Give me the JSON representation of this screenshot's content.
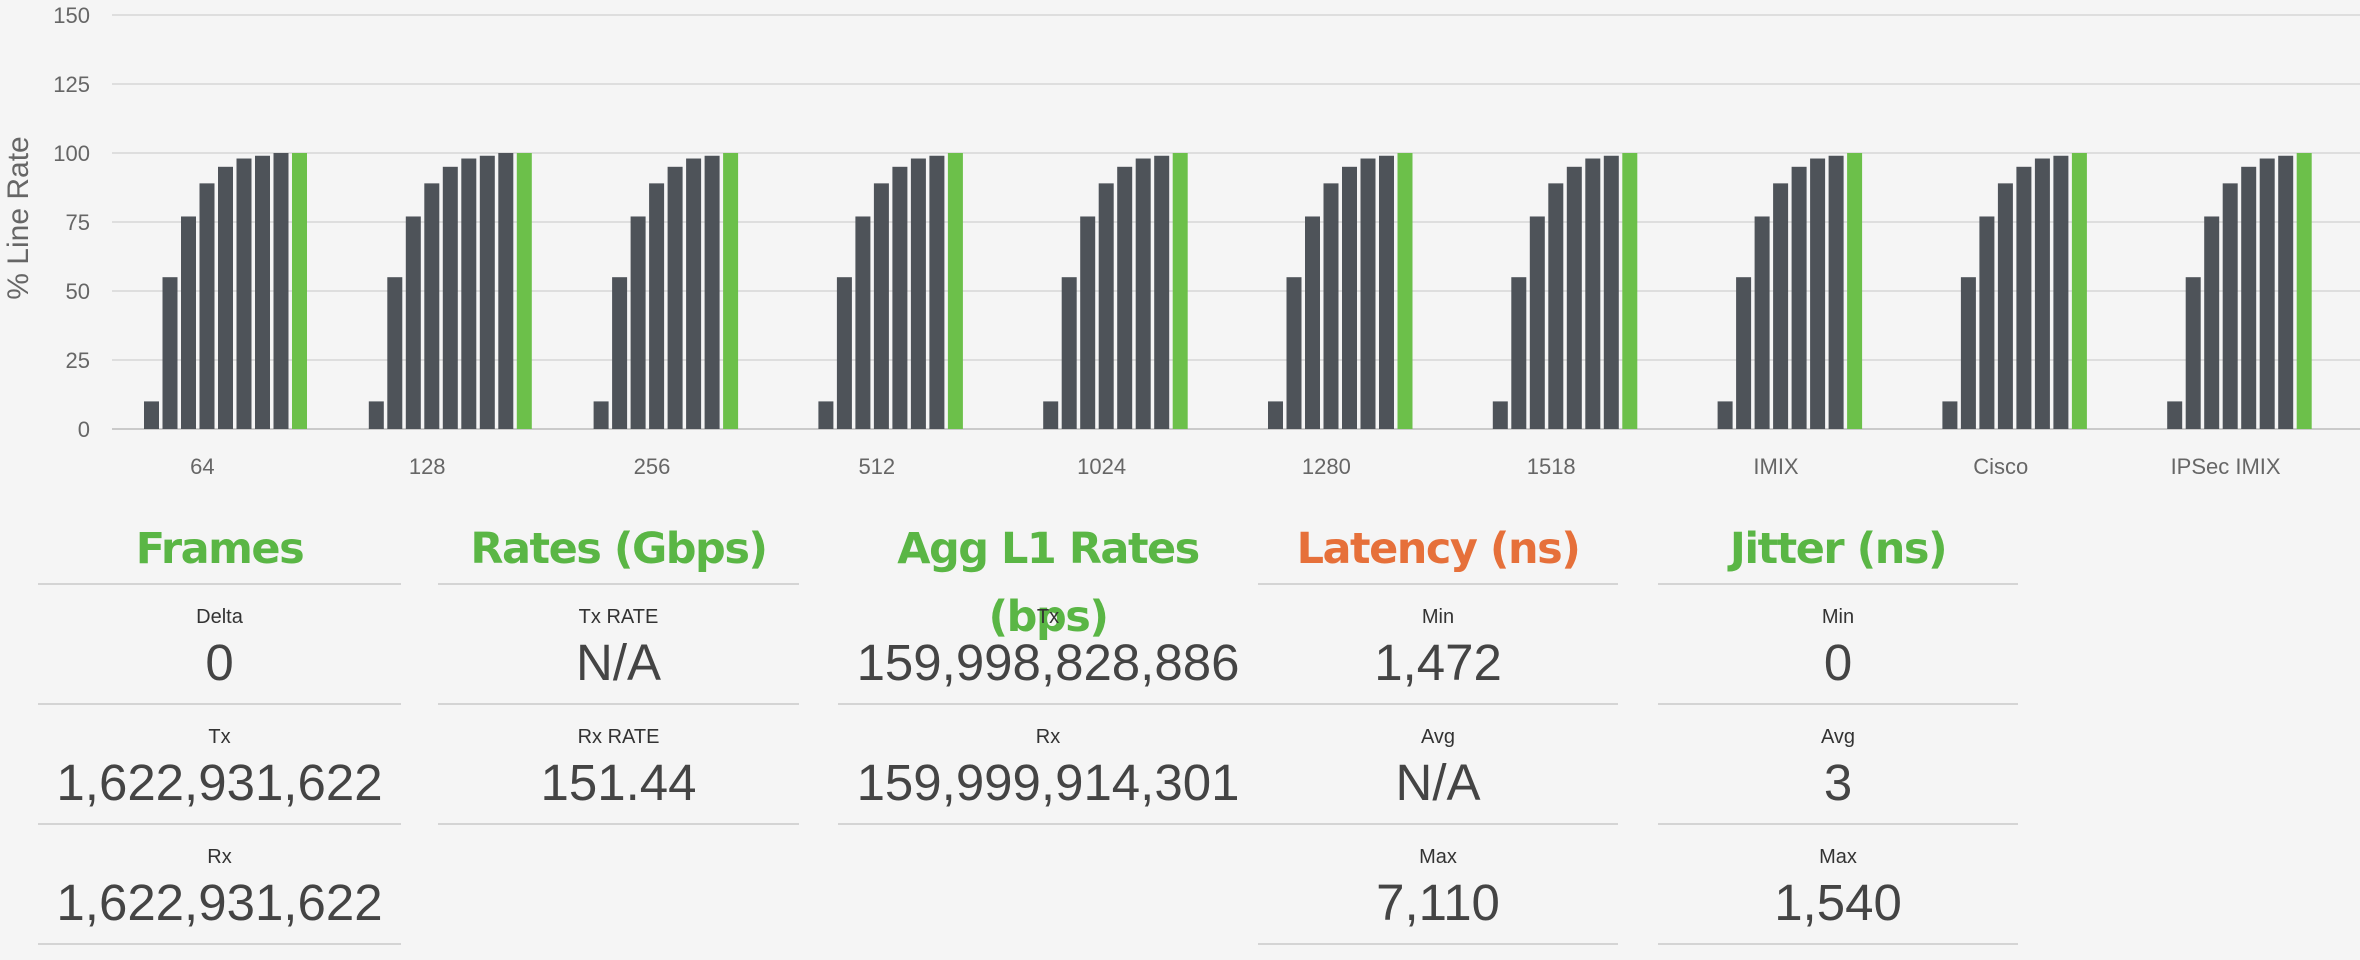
{
  "chart_data": {
    "type": "bar",
    "ylabel": "% Line Rate",
    "ylim": [
      0,
      150
    ],
    "yticks": [
      0,
      25,
      50,
      75,
      100,
      125,
      150
    ],
    "categories": [
      "64",
      "128",
      "256",
      "512",
      "1024",
      "1280",
      "1518",
      "IMIX",
      "Cisco",
      "IPSec IMIX"
    ],
    "bar_color": "#4e5359",
    "highlight_color": "#6cc04a",
    "grid": true,
    "groups": [
      {
        "category": "64",
        "values": [
          10,
          55,
          77,
          89,
          95,
          98,
          99,
          100
        ],
        "highlight": 100
      },
      {
        "category": "128",
        "values": [
          10,
          55,
          77,
          89,
          95,
          98,
          99,
          100
        ],
        "highlight": 100
      },
      {
        "category": "256",
        "values": [
          10,
          55,
          77,
          89,
          95,
          98,
          99
        ],
        "highlight": 100
      },
      {
        "category": "512",
        "values": [
          10,
          55,
          77,
          89,
          95,
          98,
          99
        ],
        "highlight": 100
      },
      {
        "category": "1024",
        "values": [
          10,
          55,
          77,
          89,
          95,
          98,
          99
        ],
        "highlight": 100
      },
      {
        "category": "1280",
        "values": [
          10,
          55,
          77,
          89,
          95,
          98,
          99
        ],
        "highlight": 100
      },
      {
        "category": "1518",
        "values": [
          10,
          55,
          77,
          89,
          95,
          98,
          99
        ],
        "highlight": 100
      },
      {
        "category": "IMIX",
        "values": [
          10,
          55,
          77,
          89,
          95,
          98,
          99
        ],
        "highlight": 100
      },
      {
        "category": "Cisco",
        "values": [
          10,
          55,
          77,
          89,
          95,
          98,
          99
        ],
        "highlight": 100
      },
      {
        "category": "IPSec IMIX",
        "values": [
          10,
          55,
          77,
          89,
          95,
          98,
          99
        ],
        "highlight": 100
      }
    ]
  },
  "frames": {
    "title": "Frames",
    "delta_label": "Delta",
    "delta_value": "0",
    "tx_label": "Tx",
    "tx_value": "1,622,931,622",
    "rx_label": "Rx",
    "rx_value": "1,622,931,622"
  },
  "rates": {
    "title": "Rates (Gbps)",
    "tx_label": "Tx RATE",
    "tx_value": "N/A",
    "rx_label": "Rx RATE",
    "rx_value": "151.44"
  },
  "agg": {
    "title": "Agg L1 Rates (bps)",
    "tx_label": "Tx",
    "tx_value": "159,998,828,886",
    "rx_label": "Rx",
    "rx_value": "159,999,914,301"
  },
  "latency": {
    "title": "Latency (ns)",
    "title_color": "#e6703a",
    "min_label": "Min",
    "min_value": "1,472",
    "avg_label": "Avg",
    "avg_value": "N/A",
    "max_label": "Max",
    "max_value": "7,110"
  },
  "jitter": {
    "title": "Jitter (ns)",
    "min_label": "Min",
    "min_value": "0",
    "avg_label": "Avg",
    "avg_value": "3",
    "max_label": "Max",
    "max_value": "1,540"
  }
}
